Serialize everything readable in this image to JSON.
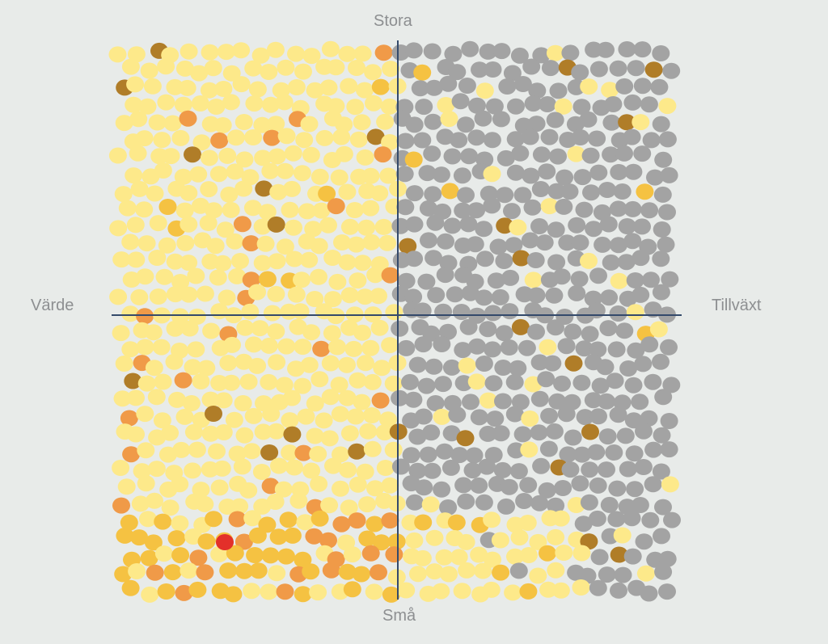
{
  "labels": {
    "top": "Stora",
    "bottom": "Små",
    "left": "Värde",
    "right": "Tillväxt"
  },
  "colors": {
    "background": "#e8ebe9",
    "axis_line": "#344a6b",
    "axis_label": "#8d8f91",
    "dot_pale_yellow": "#fde98a",
    "dot_gold": "#f5c242",
    "dot_orange": "#f09a48",
    "dot_brown": "#b07d28",
    "dot_red": "#e3302a",
    "dot_grey": "#a3a3a3"
  }
}
